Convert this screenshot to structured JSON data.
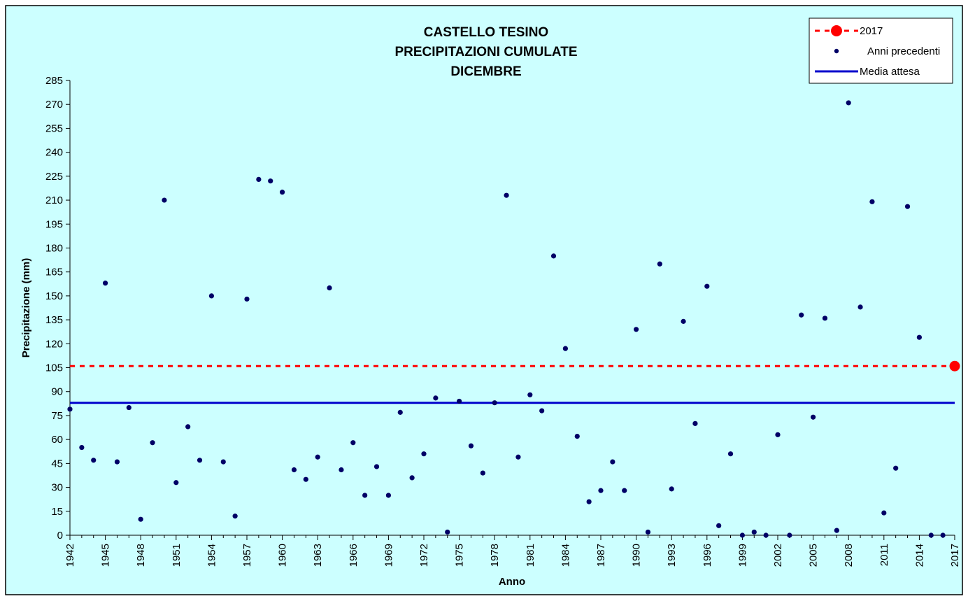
{
  "chart_data": {
    "type": "scatter",
    "title": [
      "CASTELLO TESINO",
      "PRECIPITAZIONI CUMULATE",
      "DICEMBRE"
    ],
    "xlabel": "Anno",
    "ylabel": "Precipitazione (mm)",
    "xlim": [
      1942,
      2017
    ],
    "ylim": [
      0,
      285
    ],
    "x_ticks": [
      "1942",
      "1945",
      "1948",
      "1951",
      "1954",
      "1957",
      "1960",
      "1963",
      "1966",
      "1969",
      "1972",
      "1975",
      "1978",
      "1981",
      "1984",
      "1987",
      "1990",
      "1993",
      "1996",
      "1999",
      "2002",
      "2005",
      "2008",
      "2011",
      "2014",
      "2017"
    ],
    "y_ticks": [
      "0",
      "15",
      "30",
      "45",
      "60",
      "75",
      "90",
      "105",
      "120",
      "135",
      "150",
      "165",
      "180",
      "195",
      "210",
      "225",
      "240",
      "255",
      "270",
      "285"
    ],
    "grid": false,
    "legend_position": "top-right",
    "colors": {
      "plot_bg": "#ccffff",
      "previous": "#000066",
      "mean": "#0000cc",
      "current": "#ff0000"
    },
    "series": [
      {
        "name": "2017",
        "style": "dashed-line-with-marker",
        "x": [
          2017
        ],
        "y": [
          106
        ]
      },
      {
        "name": "Anni precedenti",
        "style": "markers",
        "x": [
          1942,
          1943,
          1944,
          1945,
          1946,
          1947,
          1948,
          1949,
          1950,
          1951,
          1952,
          1953,
          1954,
          1955,
          1956,
          1957,
          1958,
          1959,
          1960,
          1961,
          1962,
          1963,
          1964,
          1965,
          1966,
          1967,
          1968,
          1969,
          1970,
          1971,
          1972,
          1973,
          1974,
          1975,
          1976,
          1977,
          1978,
          1979,
          1980,
          1981,
          1982,
          1983,
          1984,
          1985,
          1986,
          1987,
          1988,
          1989,
          1990,
          1991,
          1992,
          1993,
          1994,
          1995,
          1996,
          1997,
          1998,
          1999,
          2000,
          2001,
          2002,
          2003,
          2004,
          2005,
          2006,
          2007,
          2008,
          2009,
          2010,
          2011,
          2012,
          2013,
          2014,
          2015,
          2016
        ],
        "y": [
          79,
          55,
          47,
          158,
          46,
          80,
          10,
          58,
          210,
          33,
          68,
          47,
          150,
          46,
          12,
          148,
          223,
          222,
          215,
          41,
          35,
          49,
          155,
          41,
          58,
          25,
          43,
          25,
          77,
          36,
          51,
          86,
          2,
          84,
          56,
          39,
          83,
          213,
          49,
          88,
          78,
          175,
          117,
          62,
          21,
          28,
          46,
          28,
          129,
          2,
          170,
          29,
          134,
          70,
          156,
          6,
          51,
          0,
          2,
          0,
          63,
          0,
          138,
          74,
          136,
          3,
          271,
          143,
          209,
          14,
          42,
          206,
          124,
          0,
          0
        ]
      },
      {
        "name": "Media attesa",
        "style": "line",
        "x": [
          1942,
          2017
        ],
        "y": [
          83,
          83
        ]
      }
    ]
  }
}
